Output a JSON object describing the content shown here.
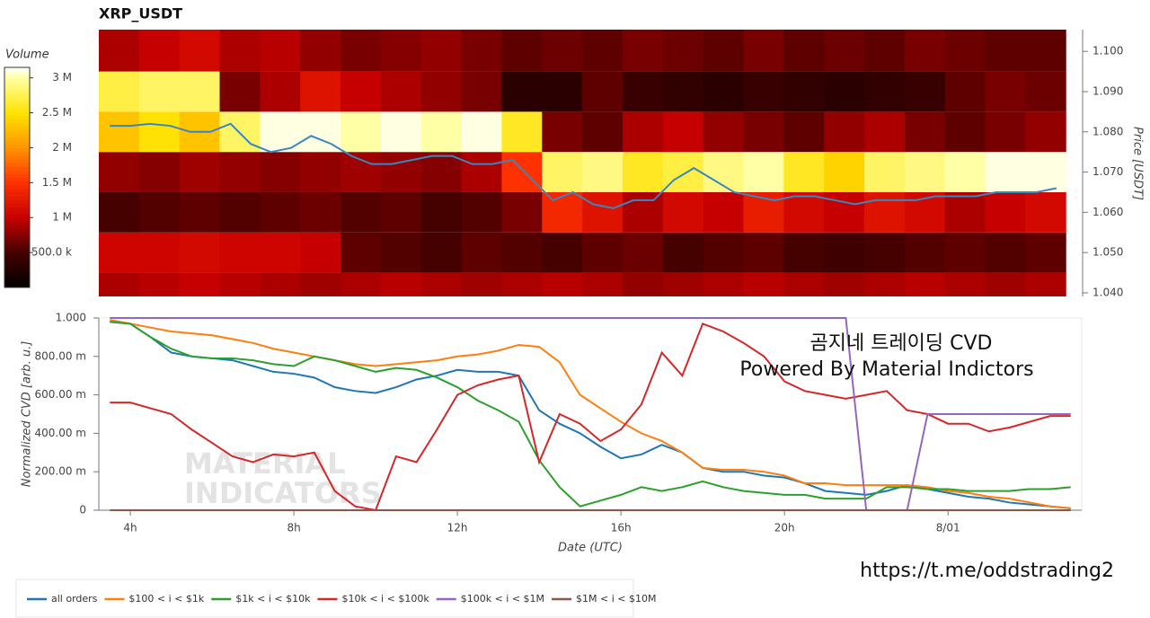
{
  "chart_data": [
    {
      "type": "heatmap",
      "title": "XRP_USDT",
      "y_label": "Price [USDT]",
      "xlim": [
        3.23,
        27.27
      ],
      "ylim": [
        1.0391,
        1.1054
      ],
      "yticks": [
        {
          "value": 1.04,
          "label": "1.040"
        },
        {
          "value": 1.05,
          "label": "1.050"
        },
        {
          "value": 1.06,
          "label": "1.060"
        },
        {
          "value": 1.07,
          "label": "1.070"
        },
        {
          "value": 1.08,
          "label": "1.080"
        },
        {
          "value": 1.09,
          "label": "1.090"
        },
        {
          "value": 1.1,
          "label": "1.100"
        }
      ],
      "x_bins": [
        3.23,
        4.23,
        5.23,
        6.23,
        7.23,
        8.23,
        9.23,
        10.23,
        11.23,
        12.23,
        13.23,
        14.23,
        15.23,
        16.23,
        17.23,
        18.23,
        19.23,
        20.23,
        21.23,
        22.23,
        23.23,
        24.23,
        25.23,
        26.23,
        27.23
      ],
      "y_bins": [
        1.0391,
        1.045,
        1.055,
        1.065,
        1.075,
        1.085,
        1.095,
        1.1054
      ],
      "z": [
        [
          900000,
          950000,
          1000000,
          950000,
          900000,
          850000,
          900000,
          950000,
          900000,
          850000,
          900000,
          950000,
          900000,
          800000,
          850000,
          900000,
          950000,
          900000,
          850000,
          900000,
          950000,
          900000,
          850000,
          900000
        ],
        [
          1050000,
          1050000,
          1100000,
          1050000,
          1050000,
          1000000,
          600000,
          550000,
          500000,
          600000,
          550000,
          500000,
          600000,
          650000,
          500000,
          550000,
          600000,
          500000,
          450000,
          500000,
          550000,
          600000,
          550000,
          600000
        ],
        [
          500000,
          550000,
          600000,
          550000,
          600000,
          650000,
          550000,
          600000,
          500000,
          550000,
          700000,
          1400000,
          1200000,
          900000,
          1100000,
          1000000,
          1300000,
          1100000,
          1000000,
          1200000,
          1100000,
          900000,
          1000000,
          1100000
        ],
        [
          800000,
          750000,
          850000,
          800000,
          750000,
          800000,
          850000,
          800000,
          750000,
          900000,
          1500000,
          2800000,
          2900000,
          2600000,
          2700000,
          2900000,
          3000000,
          2600000,
          2400000,
          2800000,
          2900000,
          3000000,
          3100000,
          3100000
        ],
        [
          2300000,
          2500000,
          2300000,
          2800000,
          3100000,
          3100000,
          3000000,
          3100000,
          3000000,
          3100000,
          2600000,
          700000,
          600000,
          900000,
          1000000,
          800000,
          700000,
          600000,
          800000,
          900000,
          700000,
          600000,
          700000,
          800000
        ],
        [
          2700000,
          2800000,
          2800000,
          700000,
          900000,
          1200000,
          1000000,
          900000,
          800000,
          700000,
          300000,
          300000,
          600000,
          400000,
          350000,
          300000,
          400000,
          350000,
          300000,
          350000,
          400000,
          600000,
          700000,
          650000
        ],
        [
          900000,
          1000000,
          1100000,
          900000,
          950000,
          800000,
          700000,
          750000,
          800000,
          700000,
          600000,
          650000,
          600000,
          700000,
          650000,
          600000,
          700000,
          600000,
          650000,
          600000,
          700000,
          650000,
          600000,
          600000
        ]
      ],
      "colorbar": {
        "label": "Volume",
        "lim": [
          0,
          3150000
        ],
        "ticks": [
          {
            "value": 500000,
            "label": "500.0 k"
          },
          {
            "value": 1000000,
            "label": "1 M"
          },
          {
            "value": 1500000,
            "label": "1.5 M"
          },
          {
            "value": 2000000,
            "label": "2 M"
          },
          {
            "value": 2500000,
            "label": "2.5 M"
          },
          {
            "value": 3000000,
            "label": "3 M"
          }
        ]
      },
      "x": [
        3.5,
        4,
        4.5,
        5,
        5.5,
        6,
        6.5,
        7,
        7.5,
        8,
        8.5,
        9,
        9.5,
        10,
        10.5,
        11,
        11.5,
        12,
        12.5,
        13,
        13.5,
        14,
        14.5,
        15,
        15.5,
        16,
        16.5,
        17,
        17.5,
        18,
        18.5,
        19,
        19.5,
        20,
        20.5,
        21,
        21.5,
        22,
        22.5,
        23,
        23.5,
        24,
        24.5,
        25,
        25.5,
        26,
        26.5,
        27
      ],
      "price": {
        "color": "#3a86c0",
        "values": [
          1.0815,
          1.0815,
          1.082,
          1.0815,
          1.08,
          1.08,
          1.082,
          1.077,
          1.075,
          1.076,
          1.079,
          1.077,
          1.074,
          1.072,
          1.072,
          1.073,
          1.074,
          1.074,
          1.072,
          1.072,
          1.073,
          1.068,
          1.063,
          1.065,
          1.062,
          1.061,
          1.063,
          1.063,
          1.068,
          1.071,
          1.068,
          1.065,
          1.064,
          1.063,
          1.064,
          1.064,
          1.063,
          1.062,
          1.063,
          1.063,
          1.063,
          1.064,
          1.064,
          1.064,
          1.065,
          1.065,
          1.065,
          1.066
        ]
      }
    },
    {
      "type": "line",
      "x_label": "Date (UTC)",
      "y_label": "Normalized CVD [arb. u.]",
      "xlim": [
        3.23,
        27.27
      ],
      "ylim": [
        0,
        1
      ],
      "xticks": [
        {
          "value": 4,
          "label": "4h"
        },
        {
          "value": 8,
          "label": "8h"
        },
        {
          "value": 12,
          "label": "12h"
        },
        {
          "value": 16,
          "label": "16h"
        },
        {
          "value": 20,
          "label": "20h"
        },
        {
          "value": 24,
          "label": "8/01"
        }
      ],
      "yticks": [
        0,
        {
          "value": 0.2,
          "label": "200.00 m"
        },
        {
          "value": 0.4,
          "label": "400.00 m"
        },
        {
          "value": 0.6,
          "label": "600.00 m"
        },
        {
          "value": 0.8,
          "label": "800.00 m"
        },
        {
          "value": 1,
          "label": "1.000"
        }
      ],
      "x": [
        3.5,
        4,
        4.5,
        5,
        5.5,
        6,
        6.5,
        7,
        7.5,
        8,
        8.5,
        9,
        9.5,
        10,
        10.5,
        11,
        11.5,
        12,
        12.5,
        13,
        13.5,
        14,
        14.5,
        15,
        15.5,
        16,
        16.5,
        17,
        17.5,
        18,
        18.5,
        19,
        19.5,
        20,
        20.5,
        21,
        21.5,
        22,
        22.5,
        23,
        23.5,
        24,
        24.5,
        25,
        25.5,
        26,
        26.5,
        27
      ],
      "series": [
        {
          "name": "all orders",
          "color": "#1f77b4",
          "values": [
            0.98,
            0.97,
            0.9,
            0.82,
            0.8,
            0.79,
            0.78,
            0.75,
            0.72,
            0.71,
            0.69,
            0.64,
            0.62,
            0.61,
            0.64,
            0.68,
            0.7,
            0.73,
            0.72,
            0.72,
            0.7,
            0.52,
            0.45,
            0.4,
            0.33,
            0.27,
            0.29,
            0.34,
            0.3,
            0.22,
            0.2,
            0.2,
            0.18,
            0.17,
            0.14,
            0.1,
            0.09,
            0.08,
            0.1,
            0.13,
            0.11,
            0.09,
            0.07,
            0.06,
            0.04,
            0.03,
            0.02,
            0.01
          ]
        },
        {
          "name": "$100 < i < $1k",
          "color": "#ff7f0e",
          "values": [
            0.99,
            0.97,
            0.95,
            0.93,
            0.92,
            0.91,
            0.89,
            0.87,
            0.84,
            0.82,
            0.8,
            0.78,
            0.76,
            0.75,
            0.76,
            0.77,
            0.78,
            0.8,
            0.81,
            0.83,
            0.86,
            0.85,
            0.77,
            0.6,
            0.53,
            0.46,
            0.4,
            0.36,
            0.3,
            0.22,
            0.21,
            0.21,
            0.2,
            0.18,
            0.14,
            0.14,
            0.13,
            0.13,
            0.13,
            0.13,
            0.12,
            0.1,
            0.09,
            0.07,
            0.06,
            0.04,
            0.02,
            0.01
          ]
        },
        {
          "name": "$1k < i < $10k",
          "color": "#2ca02c",
          "values": [
            0.98,
            0.97,
            0.9,
            0.84,
            0.8,
            0.79,
            0.79,
            0.78,
            0.76,
            0.75,
            0.8,
            0.78,
            0.75,
            0.72,
            0.74,
            0.73,
            0.69,
            0.64,
            0.57,
            0.52,
            0.46,
            0.26,
            0.12,
            0.02,
            0.05,
            0.08,
            0.12,
            0.1,
            0.12,
            0.15,
            0.12,
            0.1,
            0.09,
            0.08,
            0.08,
            0.06,
            0.06,
            0.06,
            0.12,
            0.12,
            0.11,
            0.11,
            0.1,
            0.1,
            0.1,
            0.11,
            0.11,
            0.12
          ]
        },
        {
          "name": "$10k < i < $100k",
          "color": "#d62728",
          "values": [
            0.56,
            0.56,
            0.53,
            0.5,
            0.42,
            0.35,
            0.28,
            0.25,
            0.29,
            0.28,
            0.3,
            0.1,
            0.02,
            0,
            0.28,
            0.25,
            0.42,
            0.6,
            0.65,
            0.68,
            0.7,
            0.25,
            0.5,
            0.45,
            0.36,
            0.42,
            0.55,
            0.82,
            0.7,
            0.97,
            0.93,
            0.87,
            0.8,
            0.67,
            0.62,
            0.6,
            0.58,
            0.6,
            0.62,
            0.52,
            0.5,
            0.45,
            0.45,
            0.41,
            0.43,
            0.46,
            0.49,
            0.49
          ]
        },
        {
          "name": "$100k < i < $1M",
          "color": "#9467bd",
          "values": [
            1,
            1,
            1,
            1,
            1,
            1,
            1,
            1,
            1,
            1,
            1,
            1,
            1,
            1,
            1,
            1,
            1,
            1,
            1,
            1,
            1,
            1,
            1,
            1,
            1,
            1,
            1,
            1,
            1,
            1,
            1,
            1,
            1,
            1,
            1,
            1,
            1,
            0,
            0,
            0,
            0.5,
            0.5,
            0.5,
            0.5,
            0.5,
            0.5,
            0.5,
            0.5
          ]
        },
        {
          "name": "$1M < i < $10M",
          "color": "#8c564b",
          "values": [
            0,
            0,
            0,
            0,
            0,
            0,
            0,
            0,
            0,
            0,
            0,
            0,
            0,
            0,
            0,
            0,
            0,
            0,
            0,
            0,
            0,
            0,
            0,
            0,
            0,
            0,
            0,
            0,
            0,
            0,
            0,
            0,
            0,
            0,
            0,
            0,
            0,
            0,
            0,
            0,
            0,
            0,
            0,
            0,
            0,
            0,
            0,
            0
          ]
        }
      ],
      "annotations": [
        "곰지네 트레이딩 CVD",
        "Powered By Material Indictors"
      ],
      "watermark": [
        "MATERIAL",
        "INDICATORS"
      ],
      "link": "https://t.me/oddstrading2"
    }
  ]
}
